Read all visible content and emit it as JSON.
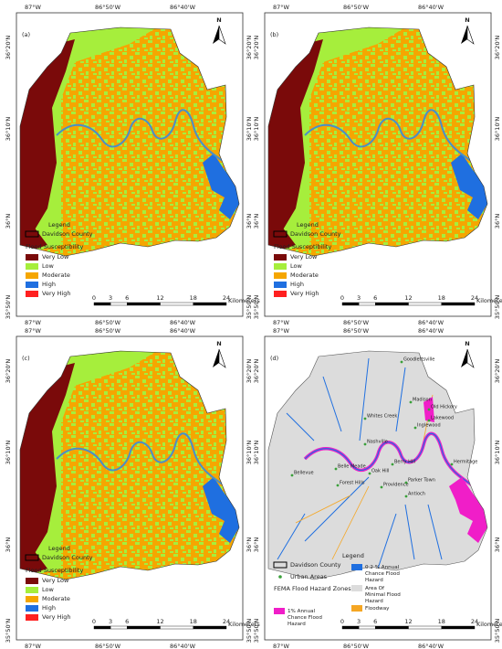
{
  "longitude_labels": [
    "87°W",
    "86°50'W",
    "86°40'W"
  ],
  "latitude_labels": [
    "36°20'N",
    "36°10'N",
    "36°N",
    "35°50'N"
  ],
  "north_label": "N",
  "scale_bar": {
    "ticks": [
      0,
      3,
      6,
      12,
      18,
      24
    ],
    "unit": "Kilometers"
  },
  "panels": [
    {
      "label": "(a)",
      "legend": {
        "title": "Legend",
        "boundary": "Davidson County",
        "heading": "Flood Susceptibility",
        "items": [
          {
            "name": "Very Low",
            "color": "#7a0a0a"
          },
          {
            "name": "Low",
            "color": "#a6ee3c"
          },
          {
            "name": "Moderate",
            "color": "#f5a600"
          },
          {
            "name": "High",
            "color": "#1f6fe0"
          },
          {
            "name": "Very High",
            "color": "#ff2020"
          }
        ]
      }
    },
    {
      "label": "(b)",
      "legend": {
        "title": "Legend",
        "boundary": "Davidson County",
        "heading": "Flood Susceptibility",
        "items": [
          {
            "name": "Very Low",
            "color": "#7a0a0a"
          },
          {
            "name": "Low",
            "color": "#a6ee3c"
          },
          {
            "name": "Moderate",
            "color": "#f5a600"
          },
          {
            "name": "High",
            "color": "#1f6fe0"
          },
          {
            "name": "Very High",
            "color": "#ff2020"
          }
        ]
      }
    },
    {
      "label": "(c)",
      "legend": {
        "title": "Legend",
        "boundary": "Davidson County",
        "heading": "Flood Susceptibility",
        "items": [
          {
            "name": "Very Low",
            "color": "#7a0a0a"
          },
          {
            "name": "Low",
            "color": "#a6ee3c"
          },
          {
            "name": "Moderate",
            "color": "#f5a600"
          },
          {
            "name": "High",
            "color": "#1f6fe0"
          },
          {
            "name": "Very High",
            "color": "#ff2020"
          }
        ]
      }
    },
    {
      "label": "(d)",
      "legend": {
        "title": "Legend",
        "boundary": "Davidson County",
        "urban": "Urban Areas",
        "heading": "FEMA Flood Hazard Zones",
        "items": [
          {
            "name": "1% Annual Chance Flood Hazard",
            "color": "#f01ec8"
          },
          {
            "name": "0.2 % Annual Chance Flood Hazard",
            "color": "#1f6fe0"
          },
          {
            "name": "Area Of Minimal Flood Hazard",
            "color": "#dcdcdc"
          },
          {
            "name": "Floodway",
            "color": "#f5a623"
          }
        ]
      },
      "places": [
        "Goodlettsville",
        "Madison",
        "Old Hickory",
        "Lakewood",
        "Whites Creek",
        "Inglewood",
        "Nashville",
        "Berry Hill",
        "Belle Meade",
        "Oak Hill",
        "Forest Hills",
        "Bellevue",
        "Providence",
        "Parker Town",
        "Hermitage",
        "Antioch"
      ]
    }
  ]
}
